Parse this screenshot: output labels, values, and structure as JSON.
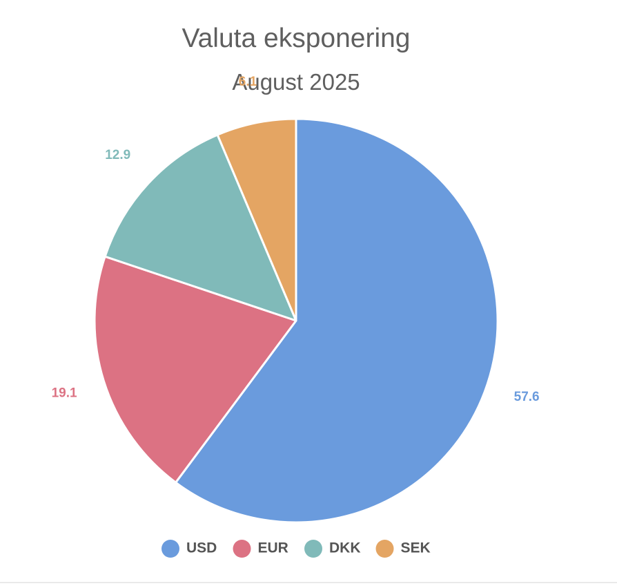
{
  "chart_data": {
    "type": "pie",
    "title": "Valuta eksponering",
    "subtitle": "August 2025",
    "categories": [
      "USD",
      "EUR",
      "DKK",
      "SEK"
    ],
    "values": [
      57.6,
      19.1,
      12.9,
      6.1
    ],
    "colors": [
      "#6a9bdd",
      "#dc7283",
      "#80bab9",
      "#e4a563"
    ],
    "legend_position": "bottom",
    "start_angle": "top, clockwise"
  }
}
